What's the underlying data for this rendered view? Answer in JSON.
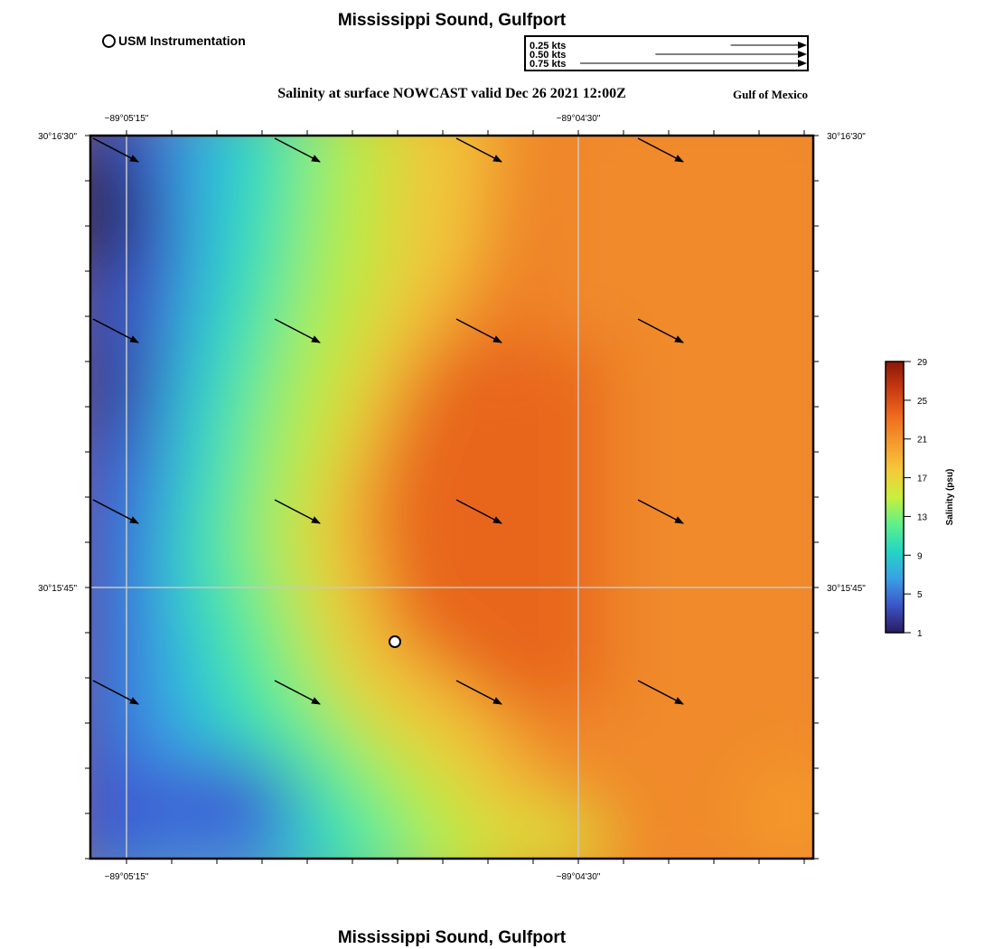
{
  "title": "Mississippi Sound, Gulfport",
  "footer_title": "Mississippi Sound, Gulfport",
  "legend": {
    "station_label": "USM Instrumentation"
  },
  "subtitle": "Salinity at surface NOWCAST valid Dec 26 2021 12:00Z",
  "region_label": "Gulf of Mexico",
  "speed_legend": [
    {
      "label": "0.25 kts",
      "value": 0.25
    },
    {
      "label": "0.50 kts",
      "value": 0.5
    },
    {
      "label": "0.75 kts",
      "value": 0.75
    }
  ],
  "axes": {
    "top": [
      "−89°05'15\"",
      "−89°04'30\""
    ],
    "bottom": [
      "−89°05'15\"",
      "−89°04'30\""
    ],
    "left": [
      "30°16'30\"",
      "30°15'45\""
    ],
    "right": [
      "30°16'30\"",
      "30°15'45\""
    ]
  },
  "colorbar": {
    "label": "Salinity (psu)",
    "ticks": [
      "29",
      "25",
      "21",
      "17",
      "13",
      "9",
      "5",
      "1"
    ],
    "min": 1,
    "max": 29,
    "colors": [
      "#2b1a5e",
      "#3b55c8",
      "#3aa0e6",
      "#22d6c4",
      "#5ef08a",
      "#c8f03c",
      "#f6c83a",
      "#f59a2e",
      "#ee6a1e",
      "#c83a12",
      "#8a1608"
    ]
  },
  "vectors": [
    {
      "row": 0,
      "col": 0
    },
    {
      "row": 0,
      "col": 1
    },
    {
      "row": 0,
      "col": 2
    },
    {
      "row": 0,
      "col": 3
    },
    {
      "row": 1,
      "col": 0
    },
    {
      "row": 1,
      "col": 1
    },
    {
      "row": 1,
      "col": 2
    },
    {
      "row": 1,
      "col": 3
    },
    {
      "row": 2,
      "col": 0
    },
    {
      "row": 2,
      "col": 1
    },
    {
      "row": 2,
      "col": 2
    },
    {
      "row": 2,
      "col": 3
    },
    {
      "row": 3,
      "col": 0
    },
    {
      "row": 3,
      "col": 1
    },
    {
      "row": 3,
      "col": 2
    },
    {
      "row": 3,
      "col": 3
    }
  ]
}
